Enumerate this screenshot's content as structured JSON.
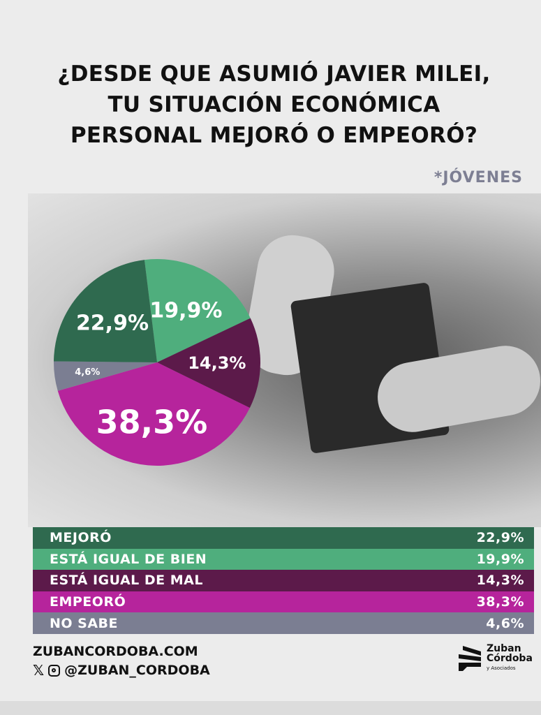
{
  "title": [
    "¿DESDE QUE ASUMIÓ JAVIER MILEI,",
    "TU SITUACIÓN ECONÓMICA",
    "PERSONAL MEJORÓ O EMPEORÓ?"
  ],
  "subtitle": "*JÓVENES",
  "chart_data": {
    "type": "pie",
    "title": "¿Desde que asumió Javier Milei, tu situación económica personal mejoró o empeoró?",
    "categories": [
      "MEJORÓ",
      "ESTÁ IGUAL DE BIEN",
      "ESTÁ IGUAL DE MAL",
      "EMPEORÓ",
      "NO SABE"
    ],
    "values": [
      22.9,
      19.9,
      14.3,
      38.3,
      4.6
    ],
    "labels": [
      "22,9%",
      "19,9%",
      "14,3%",
      "38,3%",
      "4,6%"
    ],
    "colors": [
      "#2f6a4f",
      "#4fae7d",
      "#5c1a4a",
      "#b6249c",
      "#7b7e92"
    ]
  },
  "footer": {
    "website": "ZUBANCORDOBA.COM",
    "handle": "@ZUBAN_CORDOBA"
  },
  "logo": {
    "line1": "Zuban",
    "line2": "Córdoba",
    "line3": "y Asociados"
  }
}
